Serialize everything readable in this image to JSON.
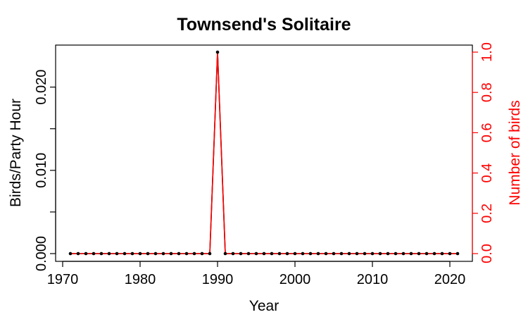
{
  "chart_data": {
    "type": "line",
    "title": "Townsend's Solitaire",
    "xlabel": "Year",
    "ylabel": "Birds/Party Hour",
    "y2label": "Number of birds",
    "xlim": [
      1971,
      2021
    ],
    "ylim": [
      0,
      0.0242
    ],
    "y2lim": [
      0,
      1
    ],
    "x_ticks": [
      1970,
      1980,
      1990,
      2000,
      2010,
      2020
    ],
    "y_ticks": [
      0.0,
      0.005,
      0.01,
      0.015,
      0.02
    ],
    "y_tick_labels": [
      "0.000",
      "",
      "0.010",
      "",
      "0.020"
    ],
    "y2_ticks": [
      0.0,
      0.2,
      0.4,
      0.6,
      0.8,
      1.0
    ],
    "y2_tick_labels": [
      "0.0",
      "0.2",
      "0.4",
      "0.6",
      "0.8",
      "1.0"
    ],
    "x": [
      1971,
      1972,
      1973,
      1974,
      1975,
      1976,
      1977,
      1978,
      1979,
      1980,
      1981,
      1982,
      1983,
      1984,
      1985,
      1986,
      1987,
      1988,
      1989,
      1990,
      1991,
      1992,
      1993,
      1994,
      1995,
      1996,
      1997,
      1998,
      1999,
      2000,
      2001,
      2002,
      2003,
      2004,
      2005,
      2006,
      2007,
      2008,
      2009,
      2010,
      2011,
      2012,
      2013,
      2014,
      2015,
      2016,
      2017,
      2018,
      2019,
      2020,
      2021
    ],
    "series": [
      {
        "axis": "left",
        "color": "#000000",
        "style": "line+points",
        "values": [
          0,
          0,
          0,
          0,
          0,
          0,
          0,
          0,
          0,
          0,
          0,
          0,
          0,
          0,
          0,
          0,
          0,
          0,
          0,
          0.0242,
          0,
          0,
          0,
          0,
          0,
          0,
          0,
          0,
          0,
          0,
          0,
          0,
          0,
          0,
          0,
          0,
          0,
          0,
          0,
          0,
          0,
          0,
          0,
          0,
          0,
          0,
          0,
          0,
          0,
          0,
          0
        ]
      },
      {
        "axis": "right",
        "color": "#ff0000",
        "style": "line",
        "values": [
          0,
          0,
          0,
          0,
          0,
          0,
          0,
          0,
          0,
          0,
          0,
          0,
          0,
          0,
          0,
          0,
          0,
          0,
          0,
          1,
          0,
          0,
          0,
          0,
          0,
          0,
          0,
          0,
          0,
          0,
          0,
          0,
          0,
          0,
          0,
          0,
          0,
          0,
          0,
          0,
          0,
          0,
          0,
          0,
          0,
          0,
          0,
          0,
          0,
          0,
          0
        ]
      }
    ],
    "colors": {
      "left_axis": "#000000",
      "right_axis": "#ff0000"
    }
  }
}
